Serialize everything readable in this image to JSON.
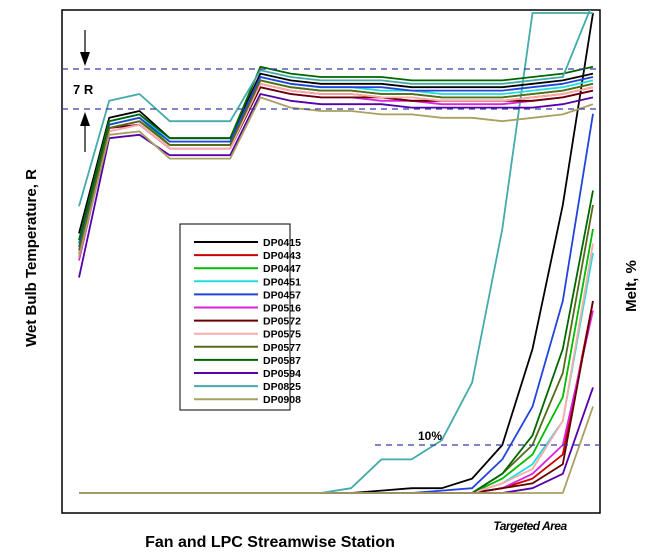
{
  "chart_data": {
    "type": "line",
    "title": "",
    "xlabel": "Fan and LPC Streamwise Station",
    "ylabel_left": "Wet Bulb Temperature, R",
    "ylabel_right": "Melt, %",
    "x_annotation": "Targeted Area",
    "annotations": [
      {
        "text": "7 R",
        "kind": "temperature-band"
      },
      {
        "text": "10%",
        "kind": "melt-threshold"
      }
    ],
    "grid": false,
    "legend_position": "center-left",
    "x": [
      1,
      2,
      3,
      4,
      5,
      6,
      7,
      8,
      9,
      10,
      11,
      12,
      13,
      14,
      15,
      16,
      17,
      18
    ],
    "temp_series": [
      {
        "name": "DP0415",
        "color": "#000000",
        "values": [
          49,
          83,
          85,
          77,
          77,
          77,
          96,
          94,
          93,
          93,
          93,
          92,
          92,
          92,
          92,
          93,
          94,
          96
        ]
      },
      {
        "name": "DP0443",
        "color": "#cc0000",
        "values": [
          43,
          80,
          82,
          75,
          75,
          75,
          93,
          91,
          90,
          90,
          89,
          88,
          88,
          88,
          88,
          89,
          90,
          92
        ]
      },
      {
        "name": "DP0447",
        "color": "#00bb00",
        "values": [
          46,
          81,
          83,
          75,
          75,
          75,
          94,
          92,
          91,
          91,
          90,
          90,
          89,
          89,
          89,
          90,
          91,
          93
        ]
      },
      {
        "name": "DP0451",
        "color": "#22dddd",
        "values": [
          47,
          82,
          84,
          76,
          76,
          76,
          95,
          93,
          92,
          92,
          91,
          91,
          90,
          90,
          90,
          91,
          92,
          94
        ]
      },
      {
        "name": "DP0457",
        "color": "#2244dd",
        "values": [
          45,
          81,
          83,
          76,
          76,
          76,
          95,
          93,
          92,
          92,
          92,
          91,
          91,
          91,
          91,
          92,
          93,
          95
        ]
      },
      {
        "name": "DP0516",
        "color": "#dd22dd",
        "values": [
          41,
          79,
          81,
          74,
          74,
          74,
          92,
          90,
          89,
          89,
          88,
          88,
          87,
          87,
          87,
          88,
          89,
          91
        ]
      },
      {
        "name": "DP0572",
        "color": "#660000",
        "values": [
          43,
          80,
          81,
          74,
          74,
          74,
          92,
          90,
          89,
          89,
          89,
          88,
          88,
          88,
          88,
          88,
          89,
          91
        ]
      },
      {
        "name": "DP0575",
        "color": "#ffaaaa",
        "values": [
          43,
          79,
          81,
          74,
          74,
          74,
          93,
          91,
          90,
          90,
          89,
          89,
          88,
          88,
          88,
          89,
          90,
          92
        ]
      },
      {
        "name": "DP0577",
        "color": "#556b1a",
        "values": [
          44,
          80,
          82,
          75,
          75,
          75,
          94,
          92,
          91,
          91,
          90,
          90,
          89,
          89,
          89,
          90,
          91,
          93
        ]
      },
      {
        "name": "DP0587",
        "color": "#006600",
        "values": [
          47,
          82,
          84,
          77,
          77,
          77,
          98,
          96,
          95,
          95,
          95,
          94,
          94,
          94,
          94,
          95,
          96,
          98
        ]
      },
      {
        "name": "DP0594",
        "color": "#5500aa",
        "values": [
          36,
          77,
          78,
          72,
          72,
          72,
          90,
          88,
          87,
          87,
          87,
          86,
          86,
          86,
          86,
          86,
          87,
          89
        ]
      },
      {
        "name": "DP0825",
        "color": "#44aaaa",
        "values": [
          57,
          88,
          90,
          82,
          82,
          82,
          97,
          95,
          94,
          94,
          94,
          93,
          93,
          93,
          93,
          94,
          95,
          117
        ]
      },
      {
        "name": "DP0908",
        "color": "#aaa060",
        "values": [
          42,
          78,
          79,
          71,
          71,
          71,
          89,
          86,
          85,
          85,
          84,
          84,
          83,
          83,
          82,
          83,
          84,
          87
        ]
      }
    ],
    "melt_series": [
      {
        "name": "DP0415",
        "color": "#000000",
        "values": [
          0,
          0,
          0,
          0,
          0,
          0,
          0,
          0,
          0,
          0,
          0.5,
          1,
          1,
          3,
          10,
          30,
          60,
          100
        ]
      },
      {
        "name": "DP0443",
        "color": "#cc0000",
        "values": [
          0,
          0,
          0,
          0,
          0,
          0,
          0,
          0,
          0,
          0,
          0,
          0,
          0,
          0,
          1,
          3,
          8,
          40
        ]
      },
      {
        "name": "DP0447",
        "color": "#00bb00",
        "values": [
          0,
          0,
          0,
          0,
          0,
          0,
          0,
          0,
          0,
          0,
          0,
          0,
          0,
          0,
          3,
          8,
          20,
          55
        ]
      },
      {
        "name": "DP0451",
        "color": "#22dddd",
        "values": [
          0,
          0,
          0,
          0,
          0,
          0,
          0,
          0,
          0,
          0,
          0,
          0,
          0,
          0,
          2,
          6,
          15,
          50
        ]
      },
      {
        "name": "DP0457",
        "color": "#2244dd",
        "values": [
          0,
          0,
          0,
          0,
          0,
          0,
          0,
          0,
          0,
          0,
          0,
          0,
          0.5,
          1,
          7,
          18,
          40,
          79
        ]
      },
      {
        "name": "DP0516",
        "color": "#dd22dd",
        "values": [
          0,
          0,
          0,
          0,
          0,
          0,
          0,
          0,
          0,
          0,
          0,
          0,
          0,
          0,
          1,
          4,
          10,
          38
        ]
      },
      {
        "name": "DP0572",
        "color": "#660000",
        "values": [
          0,
          0,
          0,
          0,
          0,
          0,
          0,
          0,
          0,
          0,
          0,
          0,
          0,
          0,
          1,
          2,
          6,
          40
        ]
      },
      {
        "name": "DP0575",
        "color": "#ffaaaa",
        "values": [
          0,
          0,
          0,
          0,
          0,
          0,
          0,
          0,
          0,
          0,
          0,
          0,
          0,
          0,
          2,
          5,
          15,
          52
        ]
      },
      {
        "name": "DP0577",
        "color": "#556b1a",
        "values": [
          0,
          0,
          0,
          0,
          0,
          0,
          0,
          0,
          0,
          0,
          0,
          0,
          0,
          0,
          4,
          10,
          25,
          60
        ]
      },
      {
        "name": "DP0587",
        "color": "#006600",
        "values": [
          0,
          0,
          0,
          0,
          0,
          0,
          0,
          0,
          0,
          0,
          0,
          0,
          0,
          0,
          4,
          12,
          30,
          63
        ]
      },
      {
        "name": "DP0594",
        "color": "#5500aa",
        "values": [
          0,
          0,
          0,
          0,
          0,
          0,
          0,
          0,
          0,
          0,
          0,
          0,
          0,
          0,
          0,
          1,
          4,
          22
        ]
      },
      {
        "name": "DP0825",
        "color": "#44aaaa",
        "values": [
          0,
          0,
          0,
          0,
          0,
          0,
          0,
          0,
          0,
          1,
          7,
          7,
          11,
          23,
          55,
          100,
          100,
          100
        ]
      },
      {
        "name": "DP0908",
        "color": "#aaa060",
        "values": [
          0,
          0,
          0,
          0,
          0,
          0,
          0,
          0,
          0,
          0,
          0,
          0,
          0,
          0,
          0,
          0,
          0,
          18
        ]
      }
    ]
  }
}
